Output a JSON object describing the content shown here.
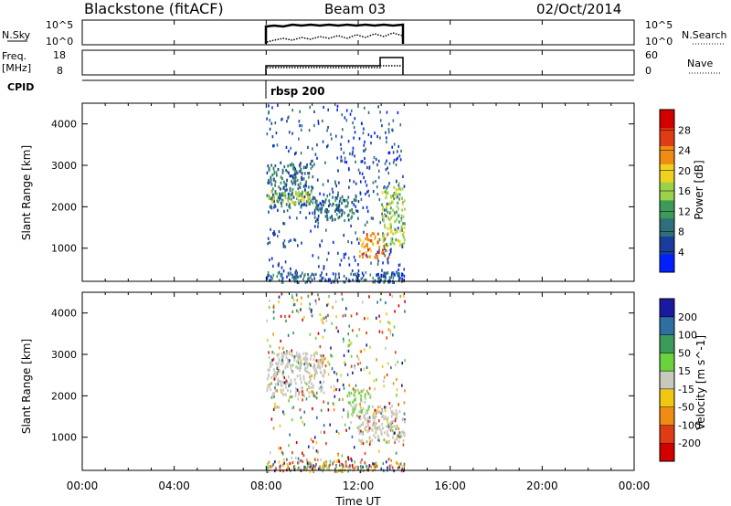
{
  "header": {
    "station": "Blackstone (fitACF)",
    "beam": "Beam 03",
    "date": "02/Oct/2014"
  },
  "nsky_panel": {
    "left_label": "N.Sky",
    "left_ticks": [
      "10^5",
      "10^0"
    ],
    "right_ticks": [
      "10^5",
      "10^0"
    ],
    "right_label": "N.Search"
  },
  "freq_panel": {
    "left_label_1": "Freq.",
    "left_label_2": "[MHz]",
    "left_ticks": [
      "18",
      "8"
    ],
    "right_ticks": [
      "60",
      "0"
    ],
    "right_label": "Nave"
  },
  "cpid": {
    "label": "CPID",
    "program": "rbsp 200"
  },
  "x_axis": {
    "label": "Time UT",
    "ticks": [
      "00:00",
      "04:00",
      "08:00",
      "12:00",
      "16:00",
      "20:00",
      "00:00"
    ]
  },
  "colors": {
    "power_scale": [
      "#0020ff",
      "#1a3c9c",
      "#2f6f7a",
      "#3c9a5a",
      "#9ad24a",
      "#f0d21e",
      "#f08c14",
      "#e03c14",
      "#d40000"
    ],
    "velocity_scale": [
      "#1a1aa0",
      "#2f6fa0",
      "#3c9a5a",
      "#6ad23c",
      "#c8c8bd",
      "#f0c814",
      "#f08c14",
      "#e03c14",
      "#d40000"
    ]
  },
  "chart_data": [
    {
      "type": "heatmap",
      "title": "Power",
      "ylabel": "Slant Range [km]",
      "yticks": [
        "4000",
        "3000",
        "2000",
        "1000"
      ],
      "ylim": [
        200,
        4500
      ],
      "xlim": [
        0,
        24
      ],
      "colorbar": {
        "label": "Power [dB]",
        "ticks": [
          "28",
          "24",
          "20",
          "16",
          "12",
          "8",
          "4"
        ],
        "range": [
          0,
          32
        ]
      },
      "data_coverage_ut": [
        8,
        14
      ],
      "bands": [
        {
          "t_start": 8,
          "t_end": 10,
          "range_km": [
            2000,
            3100
          ],
          "dominant_db": 8
        },
        {
          "t_start": 8,
          "t_end": 10,
          "range_km": [
            2100,
            2400
          ],
          "dominant_db": 16
        },
        {
          "t_start": 10,
          "t_end": 12,
          "range_km": [
            1700,
            2300
          ],
          "dominant_db": 8
        },
        {
          "t_start": 12,
          "t_end": 13.3,
          "range_km": [
            800,
            1400
          ],
          "dominant_db": 24
        },
        {
          "t_start": 13,
          "t_end": 14,
          "range_km": [
            1100,
            2600
          ],
          "dominant_db": 16
        }
      ]
    },
    {
      "type": "heatmap",
      "title": "Velocity",
      "ylabel": "Slant Range [km]",
      "yticks": [
        "4000",
        "3000",
        "2000",
        "1000"
      ],
      "ylim": [
        200,
        4500
      ],
      "xlim": [
        0,
        24
      ],
      "colorbar": {
        "label": "Velocity [m s^-1]",
        "ticks": [
          "200",
          "100",
          "50",
          "15",
          "-15",
          "-50",
          "-100",
          "-200"
        ],
        "range": [
          -250,
          250
        ]
      },
      "data_coverage_ut": [
        8,
        14
      ],
      "bands": [
        {
          "t_start": 8,
          "t_end": 10.5,
          "range_km": [
            2000,
            3100
          ],
          "dominant_velocity": 0
        },
        {
          "t_start": 11.5,
          "t_end": 12.5,
          "range_km": [
            1500,
            2200
          ],
          "dominant_velocity": 60
        },
        {
          "t_start": 12,
          "t_end": 14,
          "range_km": [
            900,
            1800
          ],
          "dominant_velocity": 0
        }
      ]
    }
  ]
}
